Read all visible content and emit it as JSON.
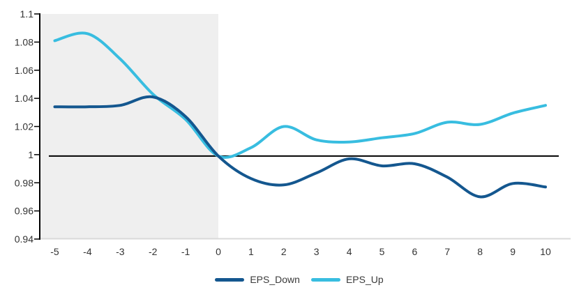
{
  "chart_data": {
    "type": "line",
    "title": "",
    "xlabel": "",
    "ylabel": "",
    "x": [
      -5,
      -4,
      -3,
      -2,
      -1,
      0,
      1,
      2,
      3,
      4,
      5,
      6,
      7,
      8,
      9,
      10
    ],
    "series": [
      {
        "name": "EPS_Down",
        "color": "#14578F",
        "values": [
          1.034,
          1.034,
          1.035,
          1.041,
          1.027,
          0.999,
          0.983,
          0.9785,
          0.987,
          0.997,
          0.992,
          0.9935,
          0.984,
          0.97,
          0.9795,
          0.977
        ]
      },
      {
        "name": "EPS_Up",
        "color": "#38BDE0",
        "values": [
          1.081,
          1.086,
          1.068,
          1.043,
          1.025,
          0.999,
          1.005,
          1.02,
          1.0105,
          1.009,
          1.012,
          1.015,
          1.023,
          1.0215,
          1.0295,
          1.035
        ]
      }
    ],
    "ylim": [
      0.94,
      1.1
    ],
    "xlim": [
      -5.5,
      10.5
    ],
    "yticks": {
      "values": [
        1.1,
        1.08,
        1.06,
        1.04,
        1.02,
        1,
        0.98,
        0.96,
        0.94
      ],
      "labels": [
        "1.1",
        "1.08",
        "1.06",
        "1.04",
        "1.02",
        "1",
        "0.98",
        "0.96",
        "0.94"
      ]
    },
    "xticks": {
      "values": [
        -5,
        -4,
        -3,
        -2,
        -1,
        0,
        1,
        2,
        3,
        4,
        5,
        6,
        7,
        8,
        9,
        10
      ],
      "labels": [
        "-5",
        "-4",
        "-3",
        "-2",
        "-1",
        "0",
        "1",
        "2",
        "3",
        "4",
        "5",
        "6",
        "7",
        "8",
        "9",
        "10"
      ]
    },
    "reference_line": {
      "value": 0.999,
      "color": "#000000"
    },
    "shaded_region": {
      "x_from": -5.5,
      "x_to": 0,
      "color": "#EFEFEF"
    },
    "grid": false,
    "legend_position": "bottom",
    "background": "#FFFFFF",
    "axis_colors": {
      "y_axis": "#000000",
      "x_axis": "#D9D9D9",
      "tick_label": "#333333"
    }
  }
}
